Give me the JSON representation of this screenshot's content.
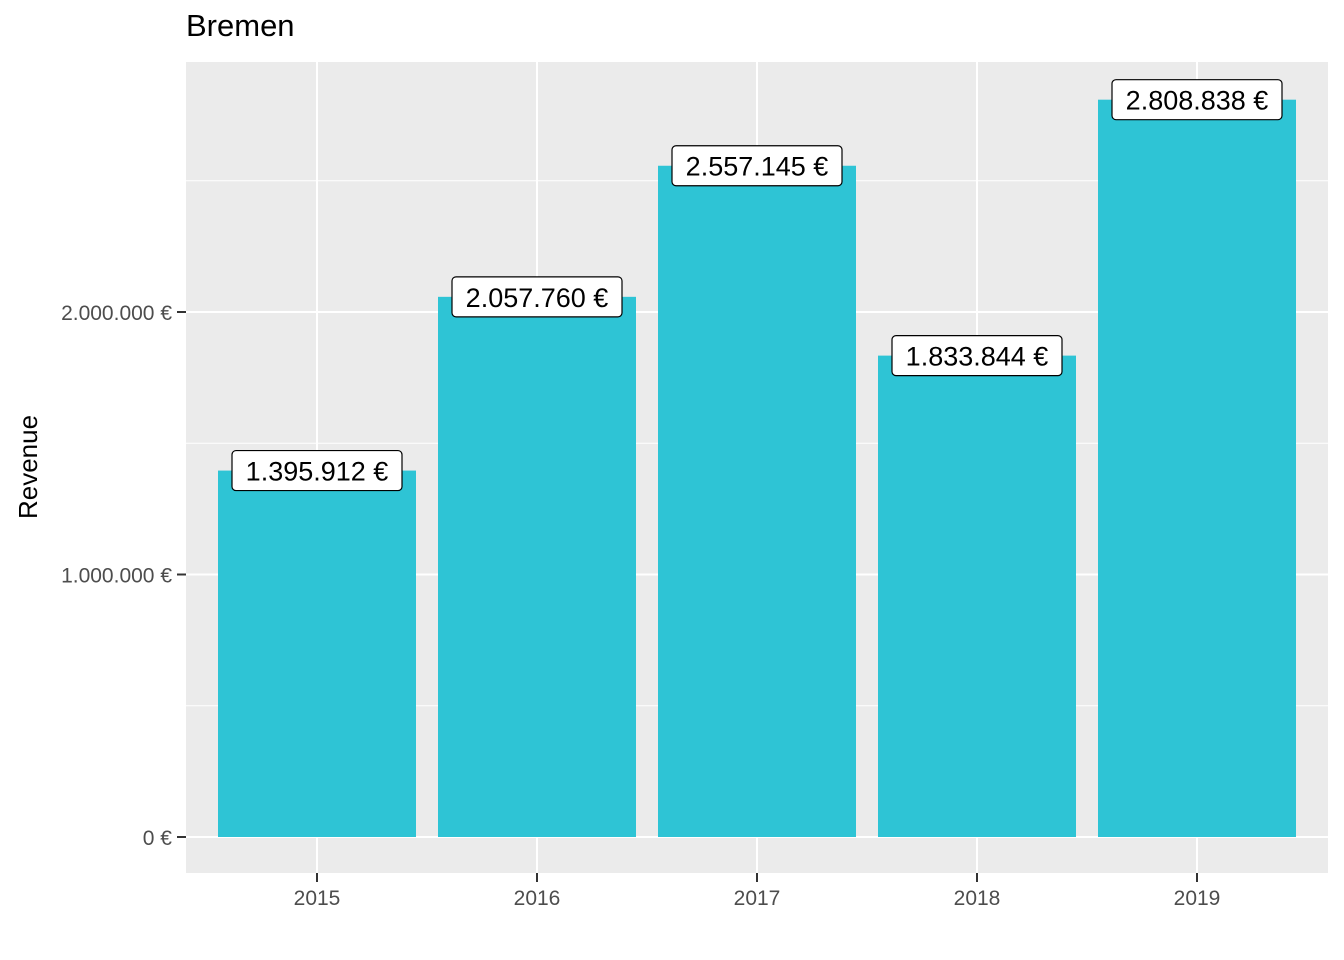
{
  "chart_data": {
    "type": "bar",
    "title": "Bremen",
    "xlabel": "",
    "ylabel": "Revenue",
    "categories": [
      "2015",
      "2016",
      "2017",
      "2018",
      "2019"
    ],
    "values": [
      1395912,
      2057760,
      2557145,
      1833844,
      2808838
    ],
    "data_labels": [
      "1.395.912 €",
      "2.057.760 €",
      "2.557.145 €",
      "1.833.844 €",
      "2.808.838 €"
    ],
    "y_ticks": [
      {
        "value": 0,
        "label": "0 €"
      },
      {
        "value": 1000000,
        "label": "1.000.000 €"
      },
      {
        "value": 2000000,
        "label": "2.000.000 €"
      }
    ],
    "y_minor_ticks": [
      500000,
      1500000,
      2500000
    ],
    "ylim": [
      -140000,
      2950000
    ],
    "grid": true,
    "legend": "none",
    "colors": {
      "bar": "#2EC4D5",
      "panel": "#EBEBEB",
      "grid": "#FFFFFF",
      "tick_text": "#4D4D4D",
      "label_box": "#FFFFFF",
      "label_border": "#000000"
    }
  }
}
